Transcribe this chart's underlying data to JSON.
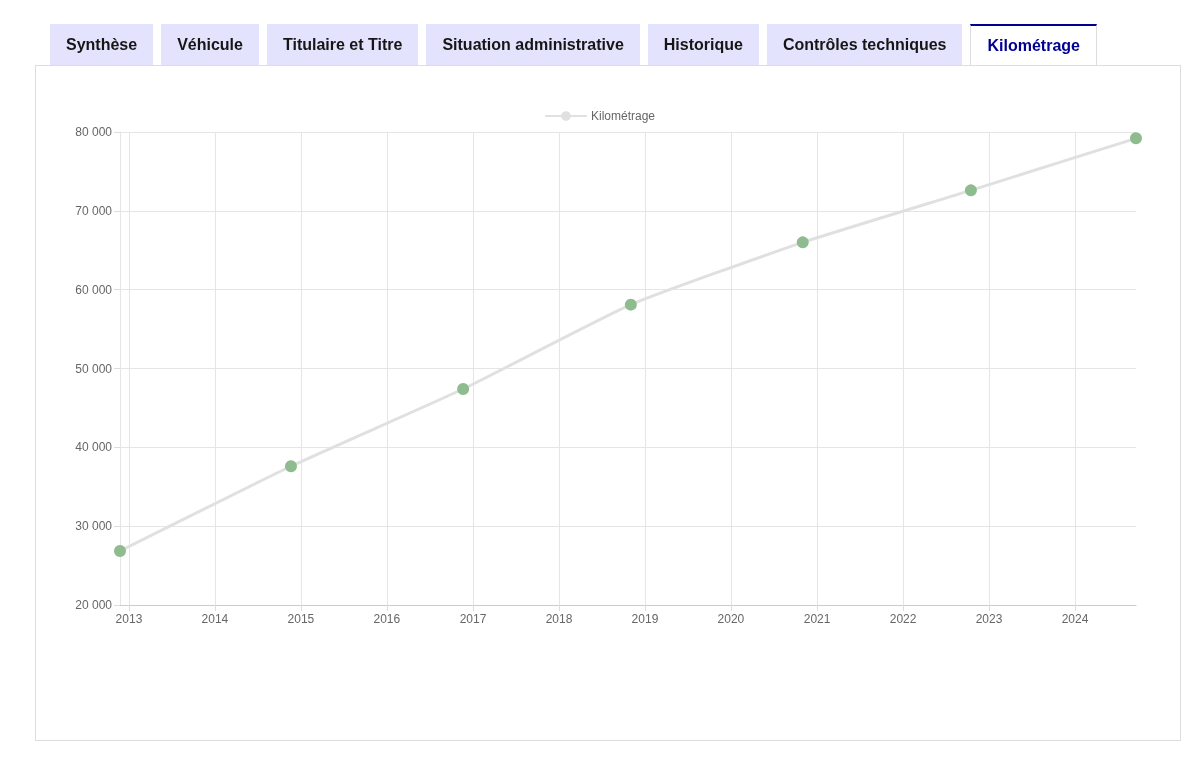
{
  "chart_data": {
    "type": "line",
    "annotations": [
      "Synthèse",
      "Véhicule",
      "Titulaire et Titre",
      "Situation administrative",
      "Historique",
      "Contrôles techniques",
      "Kilométrage"
    ],
    "x": [
      "2012-11-24",
      "2014-11-20",
      "2016-11-20",
      "2018-11-02",
      "2020-11-01",
      "2022-10-16",
      "2024-09-16"
    ],
    "series": [
      {
        "name": "Kilométrage",
        "color": "#e0e0e0",
        "colors": [
          "#8fbc8f",
          "#8fbc8f",
          "#8fbc8f",
          "#8fbc8f",
          "#8fbc8f",
          "#8fbc8f",
          "#8fbc8f"
        ],
        "values": [
          26850,
          37600,
          47400,
          58100,
          66000,
          72600,
          79200
        ]
      }
    ],
    "xlim": [
      "2012-11-24",
      "2024-09-16"
    ],
    "xticks": [
      "2013",
      "2014",
      "2015",
      "2016",
      "2017",
      "2018",
      "2019",
      "2020",
      "2021",
      "2022",
      "2023",
      "2024"
    ],
    "ylim": [
      20000,
      80000
    ],
    "yticks": [
      {
        "value": 20000,
        "label": "20 000"
      },
      {
        "value": 30000,
        "label": "30 000"
      },
      {
        "value": 40000,
        "label": "40 000"
      },
      {
        "value": 50000,
        "label": "50 000"
      },
      {
        "value": 60000,
        "label": "60 000"
      },
      {
        "value": 70000,
        "label": "70 000"
      },
      {
        "value": 80000,
        "label": "80 000"
      }
    ],
    "grid": true,
    "legend": "top",
    "marker": "circle",
    "line_style": "solid"
  }
}
